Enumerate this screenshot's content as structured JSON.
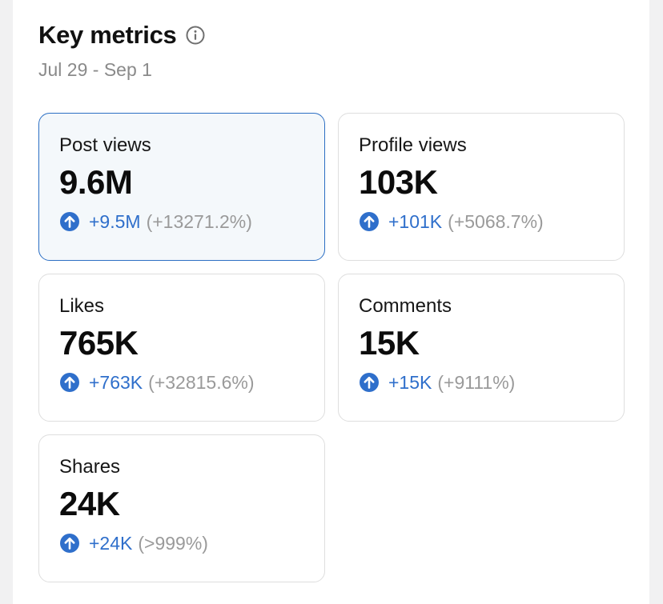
{
  "header": {
    "title": "Key metrics",
    "date_range": "Jul 29 - Sep 1"
  },
  "colors": {
    "accent": "#2f6fcb",
    "muted": "#9a9a9a",
    "selected_border": "#2c6fc4",
    "selected_background": "#f4f8fb"
  },
  "metrics": [
    {
      "label": "Post views",
      "value": "9.6M",
      "delta": "+9.5M",
      "percent": "(+13271.2%)",
      "selected": true,
      "icon": "arrow-up-circle-icon"
    },
    {
      "label": "Profile views",
      "value": "103K",
      "delta": "+101K",
      "percent": "(+5068.7%)",
      "selected": false,
      "icon": "arrow-up-circle-icon"
    },
    {
      "label": "Likes",
      "value": "765K",
      "delta": "+763K",
      "percent": "(+32815.6%)",
      "selected": false,
      "icon": "arrow-up-circle-icon"
    },
    {
      "label": "Comments",
      "value": "15K",
      "delta": "+15K",
      "percent": "(+9111%)",
      "selected": false,
      "icon": "arrow-up-circle-icon"
    },
    {
      "label": "Shares",
      "value": "24K",
      "delta": "+24K",
      "percent": "(>999%)",
      "selected": false,
      "icon": "arrow-up-circle-icon"
    }
  ]
}
